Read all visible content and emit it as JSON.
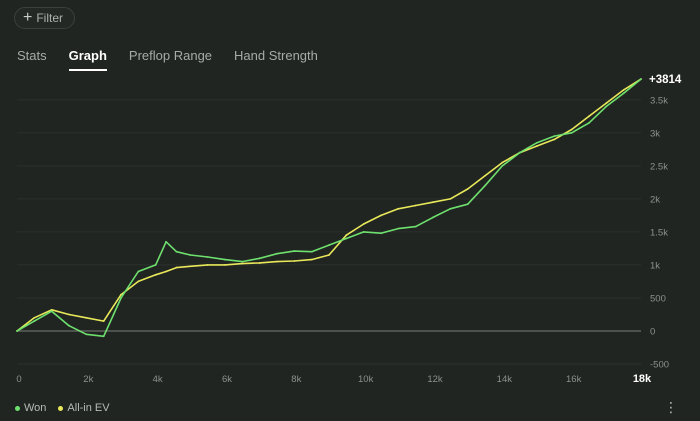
{
  "filter": {
    "label": "Filter",
    "icon": "plus-icon"
  },
  "tabs": [
    {
      "label": "Stats",
      "active": false
    },
    {
      "label": "Graph",
      "active": true
    },
    {
      "label": "Preflop Range",
      "active": false
    },
    {
      "label": "Hand Strength",
      "active": false
    }
  ],
  "chart_data": {
    "type": "line",
    "x_ticks": [
      "0",
      "2k",
      "4k",
      "6k",
      "8k",
      "10k",
      "12k",
      "14k",
      "16k",
      "18k"
    ],
    "y_ticks": [
      "-500",
      "0",
      "500",
      "1k",
      "1.5k",
      "2k",
      "2.5k",
      "3k",
      "3.5k"
    ],
    "xlim": [
      0,
      18000
    ],
    "ylim": [
      -500,
      3800
    ],
    "end_label": "+3814",
    "series": [
      {
        "name": "Won",
        "color": "#6ee06e",
        "x": [
          0,
          500,
          1000,
          1500,
          2000,
          2500,
          3000,
          3500,
          4000,
          4300,
          4600,
          5000,
          5500,
          6000,
          6500,
          7000,
          7500,
          8000,
          8500,
          9000,
          9500,
          10000,
          10500,
          11000,
          11500,
          12000,
          12500,
          13000,
          13500,
          14000,
          14500,
          15000,
          15500,
          16000,
          16500,
          17000,
          17500,
          18000
        ],
        "y": [
          0,
          150,
          300,
          80,
          -50,
          -80,
          500,
          900,
          1000,
          1350,
          1200,
          1150,
          1120,
          1080,
          1050,
          1100,
          1170,
          1210,
          1200,
          1300,
          1400,
          1500,
          1480,
          1550,
          1580,
          1720,
          1850,
          1920,
          2200,
          2500,
          2700,
          2850,
          2950,
          3000,
          3150,
          3400,
          3600,
          3814
        ]
      },
      {
        "name": "All-in EV",
        "color": "#e8e85a",
        "x": [
          0,
          500,
          1000,
          1500,
          2000,
          2500,
          3000,
          3500,
          4000,
          4300,
          4600,
          5000,
          5500,
          6000,
          6500,
          7000,
          7500,
          8000,
          8500,
          9000,
          9500,
          10000,
          10500,
          11000,
          11500,
          12000,
          12500,
          13000,
          13500,
          14000,
          14500,
          15000,
          15500,
          16000,
          16500,
          17000,
          17500,
          18000
        ],
        "y": [
          0,
          200,
          320,
          250,
          200,
          150,
          550,
          750,
          850,
          900,
          960,
          980,
          1000,
          1000,
          1020,
          1030,
          1050,
          1060,
          1080,
          1150,
          1450,
          1620,
          1750,
          1850,
          1900,
          1950,
          2000,
          2150,
          2350,
          2550,
          2700,
          2800,
          2900,
          3050,
          3250,
          3450,
          3650,
          3814
        ]
      }
    ],
    "legend_position": "bottom-left"
  },
  "legend": {
    "won_label": "Won",
    "ev_label": "All-in EV"
  },
  "menu_icon": "kebab-menu-icon"
}
